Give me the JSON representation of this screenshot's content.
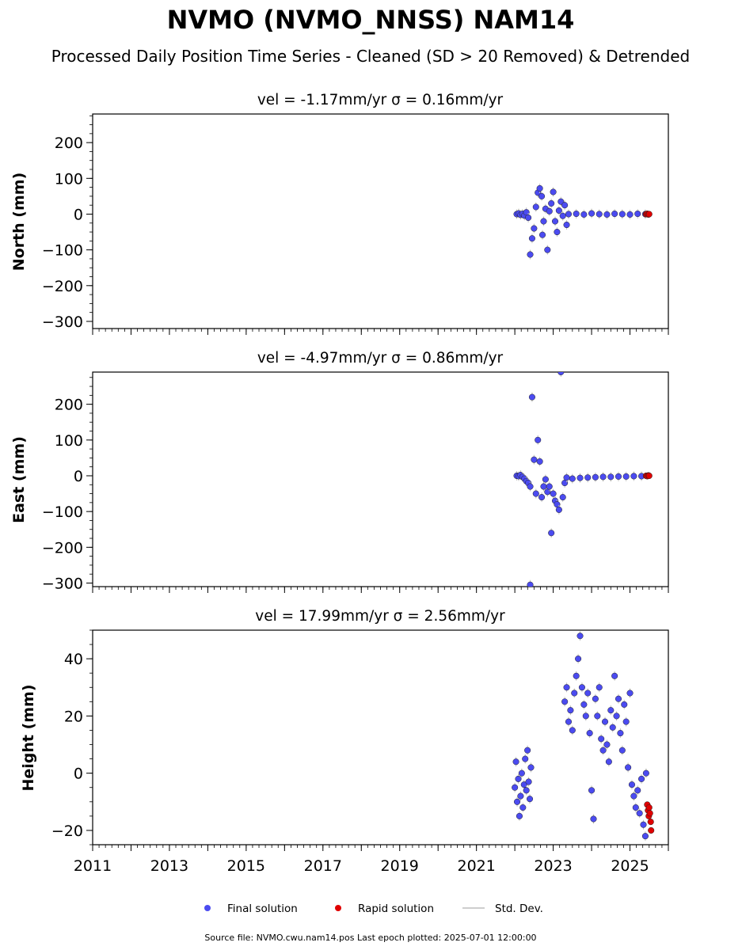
{
  "figure": {
    "title": "NVMO (NVMO_NNSS) NAM14",
    "subtitle": "Processed Daily Position Time Series - Cleaned (SD > 20 Removed) & Detrended",
    "footer": "Source file: NVMO.cwu.nam14.pos  Last epoch plotted: 2025-07-01 12:00:00",
    "colors": {
      "final": "#4b4bf0",
      "rapid": "#e00000",
      "std_dev": "#bdbdbd",
      "marker_edge": "#222222"
    }
  },
  "legend": {
    "placement": "bottom-center",
    "items": [
      {
        "label": "Final solution",
        "marker": "circle",
        "color": "#4b4bf0"
      },
      {
        "label": "Rapid solution",
        "marker": "circle",
        "color": "#e00000"
      },
      {
        "label": "Std. Dev.",
        "marker": "line",
        "color": "#bdbdbd"
      }
    ]
  },
  "chart_data": [
    {
      "type": "scatter",
      "title": "vel = -1.17mm/yr   σ = 0.16mm/yr",
      "ylabel": "North (mm)",
      "xlim": [
        2011,
        2026
      ],
      "ylim": [
        -320,
        280
      ],
      "yticks": [
        -300,
        -200,
        -100,
        0,
        100,
        200
      ],
      "xticks": [
        2011,
        2013,
        2015,
        2017,
        2019,
        2021,
        2023,
        2025
      ],
      "show_xtick_labels": false,
      "final_points": [
        [
          2022.05,
          0
        ],
        [
          2022.1,
          2
        ],
        [
          2022.15,
          -2
        ],
        [
          2022.2,
          1
        ],
        [
          2022.25,
          -4
        ],
        [
          2022.3,
          5
        ],
        [
          2022.35,
          -10
        ],
        [
          2022.4,
          -113
        ],
        [
          2022.45,
          -68
        ],
        [
          2022.5,
          -40
        ],
        [
          2022.55,
          20
        ],
        [
          2022.6,
          60
        ],
        [
          2022.65,
          72
        ],
        [
          2022.7,
          50
        ],
        [
          2022.72,
          -58
        ],
        [
          2022.75,
          -20
        ],
        [
          2022.8,
          15
        ],
        [
          2022.85,
          -100
        ],
        [
          2022.9,
          8
        ],
        [
          2022.95,
          30
        ],
        [
          2023.0,
          62
        ],
        [
          2023.05,
          -20
        ],
        [
          2023.1,
          -50
        ],
        [
          2023.15,
          10
        ],
        [
          2023.2,
          35
        ],
        [
          2023.25,
          -5
        ],
        [
          2023.3,
          25
        ],
        [
          2023.35,
          -30
        ],
        [
          2023.4,
          0
        ],
        [
          2023.6,
          1
        ],
        [
          2023.8,
          -1
        ],
        [
          2024.0,
          2
        ],
        [
          2024.2,
          0
        ],
        [
          2024.4,
          -1
        ],
        [
          2024.6,
          1
        ],
        [
          2024.8,
          0
        ],
        [
          2025.0,
          -1
        ],
        [
          2025.2,
          1
        ],
        [
          2025.4,
          0
        ]
      ],
      "rapid_points": [
        [
          2025.42,
          0
        ],
        [
          2025.45,
          1
        ],
        [
          2025.48,
          -1
        ],
        [
          2025.5,
          0
        ]
      ]
    },
    {
      "type": "scatter",
      "title": "vel = -4.97mm/yr   σ = 0.86mm/yr",
      "ylabel": "East (mm)",
      "xlim": [
        2011,
        2026
      ],
      "ylim": [
        -310,
        290
      ],
      "yticks": [
        -300,
        -200,
        -100,
        0,
        100,
        200
      ],
      "xticks": [
        2011,
        2013,
        2015,
        2017,
        2019,
        2021,
        2023,
        2025
      ],
      "show_xtick_labels": false,
      "final_points": [
        [
          2022.05,
          0
        ],
        [
          2022.1,
          -1
        ],
        [
          2022.15,
          2
        ],
        [
          2022.2,
          -3
        ],
        [
          2022.25,
          -8
        ],
        [
          2022.3,
          -15
        ],
        [
          2022.35,
          -20
        ],
        [
          2022.4,
          -30
        ],
        [
          2022.45,
          220
        ],
        [
          2022.5,
          45
        ],
        [
          2022.55,
          -50
        ],
        [
          2022.6,
          100
        ],
        [
          2022.65,
          40
        ],
        [
          2022.7,
          -60
        ],
        [
          2022.75,
          -30
        ],
        [
          2022.8,
          -10
        ],
        [
          2022.85,
          -45
        ],
        [
          2022.9,
          -30
        ],
        [
          2022.95,
          -160
        ],
        [
          2023.0,
          -50
        ],
        [
          2023.05,
          -70
        ],
        [
          2023.1,
          -80
        ],
        [
          2023.15,
          -95
        ],
        [
          2023.2,
          290
        ],
        [
          2023.25,
          -60
        ],
        [
          2023.3,
          -20
        ],
        [
          2023.35,
          -5
        ],
        [
          2023.5,
          -8
        ],
        [
          2023.7,
          -6
        ],
        [
          2023.9,
          -5
        ],
        [
          2024.1,
          -4
        ],
        [
          2024.3,
          -3
        ],
        [
          2024.5,
          -3
        ],
        [
          2024.7,
          -2
        ],
        [
          2024.9,
          -2
        ],
        [
          2025.1,
          -1
        ],
        [
          2025.3,
          -1
        ],
        [
          2022.4,
          -305
        ]
      ],
      "rapid_points": [
        [
          2025.42,
          0
        ],
        [
          2025.45,
          -1
        ],
        [
          2025.48,
          1
        ],
        [
          2025.5,
          0
        ]
      ]
    },
    {
      "type": "scatter",
      "title": "vel = 17.99mm/yr   σ = 2.56mm/yr",
      "ylabel": "Height (mm)",
      "xlim": [
        2011,
        2026
      ],
      "ylim": [
        -25,
        50
      ],
      "yticks": [
        -20,
        0,
        20,
        40
      ],
      "xticks": [
        2011,
        2013,
        2015,
        2017,
        2019,
        2021,
        2023,
        2025
      ],
      "show_xtick_labels": true,
      "final_points": [
        [
          2022.0,
          -5
        ],
        [
          2022.03,
          4
        ],
        [
          2022.06,
          -10
        ],
        [
          2022.09,
          -2
        ],
        [
          2022.12,
          -15
        ],
        [
          2022.15,
          -8
        ],
        [
          2022.18,
          0
        ],
        [
          2022.21,
          -12
        ],
        [
          2022.24,
          -4
        ],
        [
          2022.27,
          5
        ],
        [
          2022.3,
          -6
        ],
        [
          2022.33,
          8
        ],
        [
          2022.36,
          -3
        ],
        [
          2022.39,
          -9
        ],
        [
          2022.42,
          2
        ],
        [
          2023.3,
          25
        ],
        [
          2023.35,
          30
        ],
        [
          2023.4,
          18
        ],
        [
          2023.45,
          22
        ],
        [
          2023.5,
          15
        ],
        [
          2023.55,
          28
        ],
        [
          2023.6,
          34
        ],
        [
          2023.65,
          40
        ],
        [
          2023.7,
          48
        ],
        [
          2023.75,
          30
        ],
        [
          2023.8,
          24
        ],
        [
          2023.85,
          20
        ],
        [
          2023.9,
          28
        ],
        [
          2023.95,
          14
        ],
        [
          2024.0,
          -6
        ],
        [
          2024.05,
          -16
        ],
        [
          2024.1,
          26
        ],
        [
          2024.15,
          20
        ],
        [
          2024.2,
          30
        ],
        [
          2024.25,
          12
        ],
        [
          2024.3,
          8
        ],
        [
          2024.35,
          18
        ],
        [
          2024.4,
          10
        ],
        [
          2024.45,
          4
        ],
        [
          2024.5,
          22
        ],
        [
          2024.55,
          16
        ],
        [
          2024.6,
          34
        ],
        [
          2024.65,
          20
        ],
        [
          2024.7,
          26
        ],
        [
          2024.75,
          14
        ],
        [
          2024.8,
          8
        ],
        [
          2024.85,
          24
        ],
        [
          2024.9,
          18
        ],
        [
          2024.95,
          2
        ],
        [
          2025.0,
          28
        ],
        [
          2025.05,
          -4
        ],
        [
          2025.1,
          -8
        ],
        [
          2025.15,
          -12
        ],
        [
          2025.2,
          -6
        ],
        [
          2025.25,
          -14
        ],
        [
          2025.3,
          -2
        ],
        [
          2025.35,
          -18
        ],
        [
          2025.4,
          -22
        ],
        [
          2025.42,
          0
        ]
      ],
      "rapid_points": [
        [
          2025.45,
          -11
        ],
        [
          2025.47,
          -13
        ],
        [
          2025.49,
          -15
        ],
        [
          2025.5,
          -12
        ],
        [
          2025.52,
          -14
        ],
        [
          2025.54,
          -17
        ],
        [
          2025.55,
          -20
        ]
      ]
    }
  ]
}
